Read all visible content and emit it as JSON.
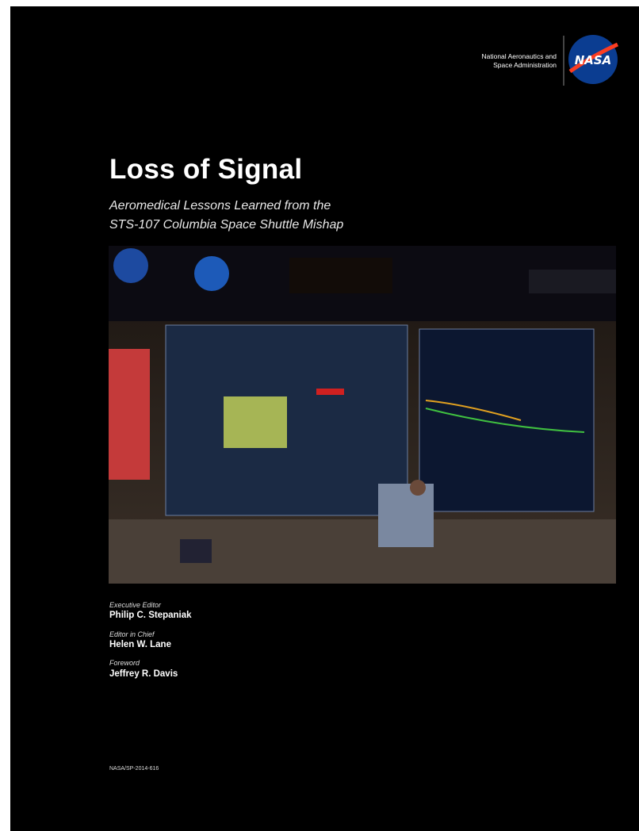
{
  "header": {
    "agency": [
      "National Aeronautics and",
      "Space Administration"
    ],
    "logo": "NASA"
  },
  "title": "Loss of Signal",
  "subtitle": [
    "Aeromedical Lessons Learned from the",
    "STS-107 Columbia Space Shuttle Mishap"
  ],
  "credits": [
    {
      "role": "Executive Editor",
      "name": "Philip C. Stepaniak"
    },
    {
      "role": "Editor in Chief",
      "name": "Helen W. Lane"
    },
    {
      "role": "Foreword",
      "name": "Jeffrey R. Davis"
    }
  ],
  "report_number": "NASA/SP-2014-616"
}
